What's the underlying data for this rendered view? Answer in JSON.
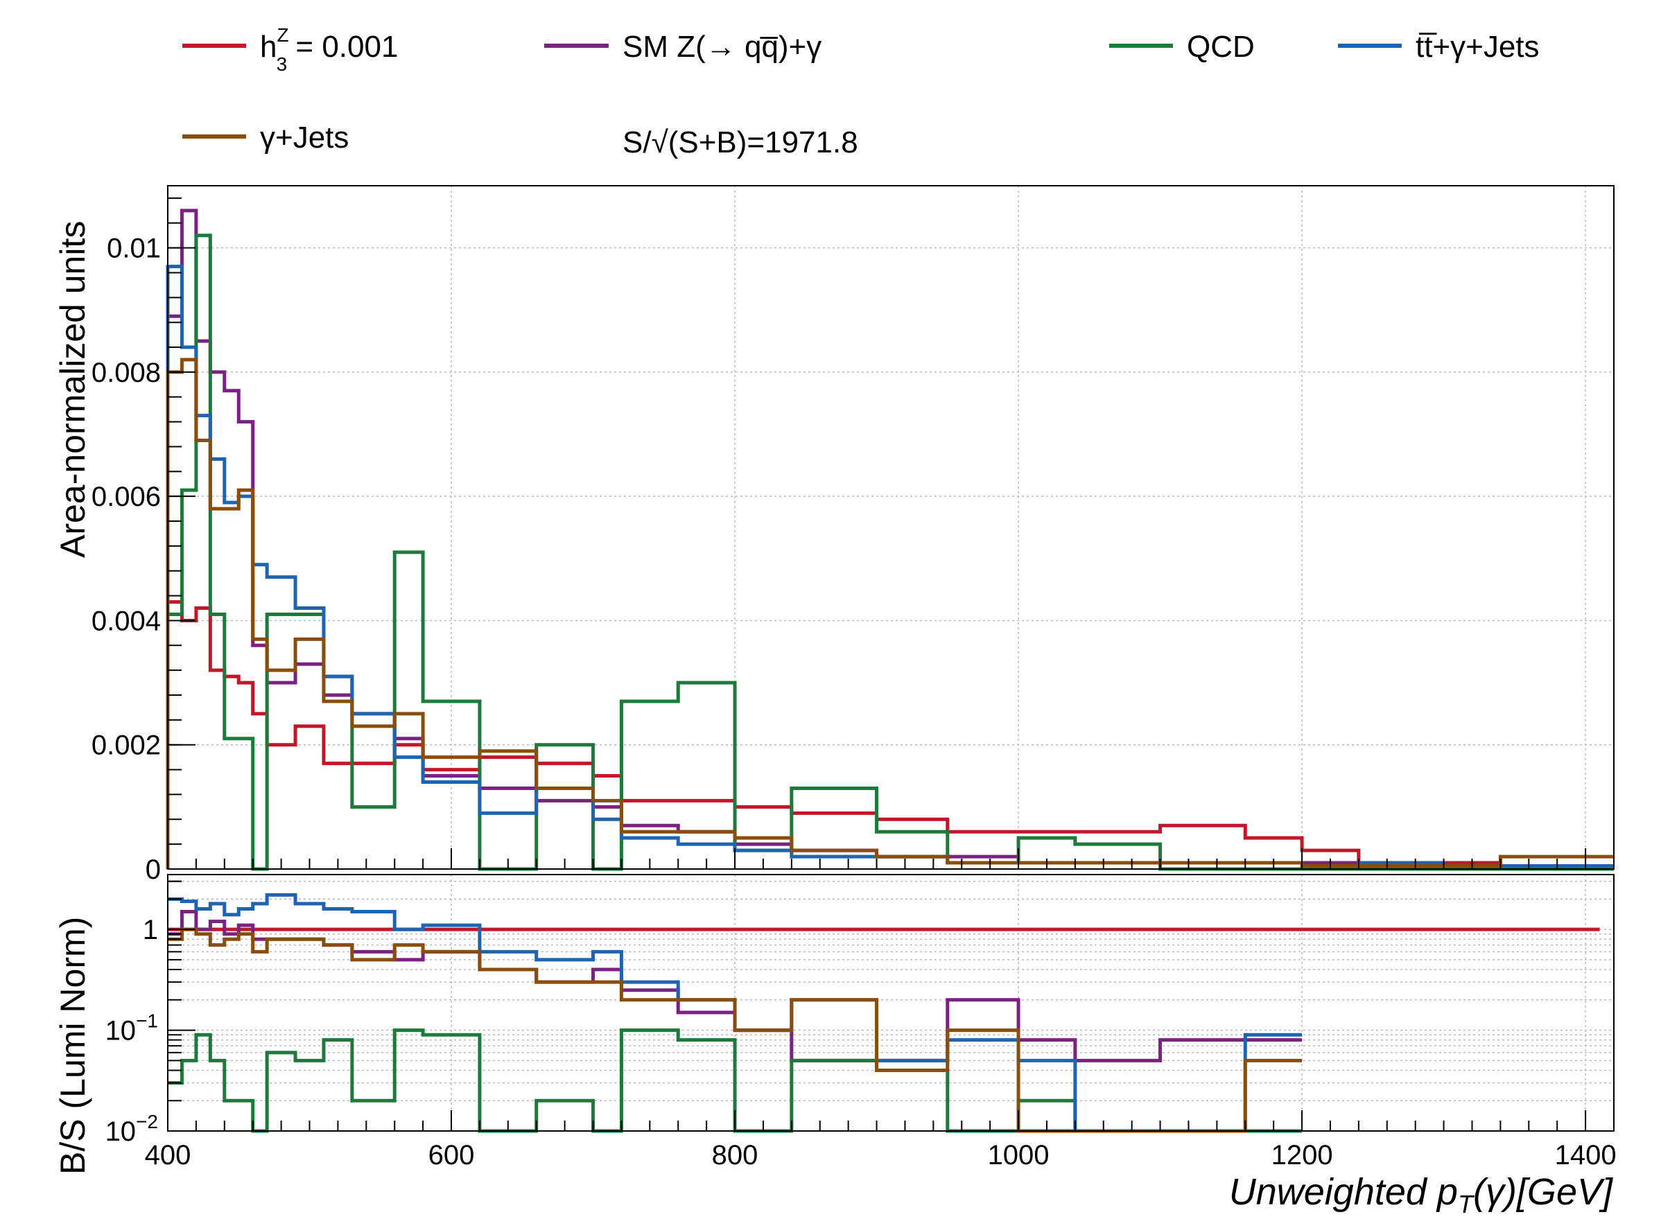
{
  "legend": {
    "entries": [
      {
        "label": "h",
        "sup": "Z",
        "sub": "3",
        "suffix": " = 0.001",
        "color": "#c0182a"
      },
      {
        "label": "SM Z(→ qq̅)+γ",
        "color": "#7a2182"
      },
      {
        "label": "QCD",
        "color": "#1d7a3a"
      },
      {
        "label": "tt̅+γ+Jets",
        "color": "#1f64b0"
      },
      {
        "label": "γ+Jets",
        "color": "#8a4e0c"
      }
    ],
    "significance": "S/√(S+B)=1971.8"
  },
  "chart_data": [
    {
      "type": "line",
      "step": true,
      "ylabel": "Area-normalized units",
      "xlim": [
        400,
        1420
      ],
      "ylim": [
        0,
        0.011
      ],
      "yticks": [
        {
          "value": 0,
          "label": "0"
        },
        {
          "value": 0.002,
          "label": "0.002"
        },
        {
          "value": 0.004,
          "label": "0.004"
        },
        {
          "value": 0.006,
          "label": "0.006"
        },
        {
          "value": 0.008,
          "label": "0.008"
        },
        {
          "value": 0.01,
          "label": "0.01"
        }
      ],
      "grid": true,
      "series": [
        {
          "name": "h3Z = 0.001",
          "color": "#c0182a",
          "edges": [
            400,
            410,
            420,
            430,
            440,
            450,
            460,
            470,
            490,
            510,
            530,
            560,
            580,
            620,
            660,
            700,
            720,
            760,
            800,
            840,
            900,
            950,
            1000,
            1040,
            1100,
            1160,
            1200,
            1220,
            1240,
            1280,
            1300,
            1320,
            1340,
            1360,
            1420
          ],
          "values": [
            0.0043,
            0.004,
            0.0042,
            0.0032,
            0.0031,
            0.003,
            0.0025,
            0.002,
            0.0023,
            0.0017,
            0.0017,
            0.002,
            0.0016,
            0.0018,
            0.0017,
            0.0015,
            0.0011,
            0.0011,
            0.001,
            0.0009,
            0.0008,
            0.0006,
            0.0006,
            0.0006,
            0.0007,
            0.0005,
            0.0003,
            0.0003,
            0.0001,
            0.0001,
            0.0001,
            0.0001,
            5e-05,
            5e-05
          ]
        },
        {
          "name": "SM Z(→ qq̅)+γ",
          "color": "#7a2182",
          "edges": [
            400,
            410,
            420,
            430,
            440,
            450,
            460,
            470,
            490,
            510,
            530,
            560,
            580,
            620,
            660,
            700,
            720,
            760,
            800,
            840,
            900,
            950,
            1000,
            1040,
            1100,
            1160,
            1200,
            1220,
            1240,
            1280,
            1300,
            1320,
            1340,
            1360,
            1420
          ],
          "values": [
            0.0089,
            0.0106,
            0.0085,
            0.008,
            0.0077,
            0.0072,
            0.0036,
            0.003,
            0.0033,
            0.0028,
            0.0025,
            0.0021,
            0.0015,
            0.0013,
            0.0011,
            0.001,
            0.0007,
            0.0006,
            0.0004,
            0.0003,
            0.0002,
            0.0002,
            0.0001,
            0.0001,
            0.0001,
            0.0001,
            0.0001,
            0.0001,
            5e-05,
            5e-05,
            5e-05,
            5e-05,
            5e-05,
            5e-05
          ]
        },
        {
          "name": "QCD",
          "color": "#1d7a3a",
          "edges": [
            400,
            410,
            420,
            430,
            440,
            450,
            460,
            470,
            490,
            510,
            530,
            560,
            580,
            620,
            660,
            700,
            720,
            760,
            800,
            840,
            900,
            950,
            1000,
            1040,
            1100,
            1160,
            1200,
            1220,
            1240,
            1280,
            1300,
            1320,
            1340,
            1360,
            1420
          ],
          "values": [
            0.0041,
            0.0061,
            0.0102,
            0.0041,
            0.0021,
            0.0021,
            0.0,
            0.0041,
            0.0041,
            0.0031,
            0.001,
            0.0051,
            0.0027,
            0.0,
            0.002,
            0.0,
            0.0027,
            0.003,
            0.0003,
            0.0013,
            0.0006,
            0.0001,
            0.0005,
            0.0004,
            0.0,
            0.0,
            0.0,
            0.0,
            0.0,
            0.0,
            0.0,
            0.0,
            0.0,
            0.0
          ]
        },
        {
          "name": "tt̅+γ+Jets",
          "color": "#1f64b0",
          "edges": [
            400,
            410,
            420,
            430,
            440,
            450,
            460,
            470,
            490,
            510,
            530,
            560,
            580,
            620,
            660,
            700,
            720,
            760,
            800,
            840,
            900,
            950,
            1000,
            1040,
            1100,
            1160,
            1200,
            1220,
            1240,
            1280,
            1300,
            1320,
            1340,
            1360,
            1420
          ],
          "values": [
            0.0097,
            0.0084,
            0.0073,
            0.0066,
            0.0059,
            0.006,
            0.0049,
            0.0047,
            0.0042,
            0.0031,
            0.0025,
            0.0018,
            0.0014,
            0.0009,
            0.0013,
            0.0008,
            0.0005,
            0.0004,
            0.0003,
            0.0002,
            0.0002,
            0.0001,
            0.0001,
            0.0001,
            0.0001,
            0.0001,
            5e-05,
            5e-05,
            0.0001,
            0.0001,
            5e-05,
            5e-05,
            5e-05,
            5e-05
          ]
        },
        {
          "name": "γ+Jets",
          "color": "#8a4e0c",
          "edges": [
            400,
            410,
            420,
            430,
            440,
            450,
            460,
            470,
            490,
            510,
            530,
            560,
            580,
            620,
            660,
            700,
            720,
            760,
            800,
            840,
            900,
            950,
            1000,
            1040,
            1100,
            1160,
            1200,
            1220,
            1240,
            1280,
            1300,
            1320,
            1340,
            1360,
            1420
          ],
          "values": [
            0.008,
            0.0082,
            0.0069,
            0.0058,
            0.0058,
            0.0061,
            0.0037,
            0.0032,
            0.0037,
            0.0027,
            0.0023,
            0.0025,
            0.0018,
            0.0019,
            0.0013,
            0.0011,
            0.0006,
            0.0006,
            0.0005,
            0.0003,
            0.0002,
            0.0001,
            0.0001,
            0.0001,
            0.0001,
            0.0001,
            5e-05,
            5e-05,
            5e-05,
            5e-05,
            5e-05,
            5e-05,
            0.0002,
            0.0002
          ]
        }
      ]
    },
    {
      "type": "line",
      "step": true,
      "log_scale_y": true,
      "ylabel": "B/S (Lumi Norm)",
      "xlabel": "Unweighted p_T(γ)[GeV]",
      "xlim": [
        400,
        1420
      ],
      "ylim": [
        0.01,
        3.5
      ],
      "xticks": [
        400,
        600,
        800,
        1000,
        1200,
        1400
      ],
      "yticks": [
        {
          "value": 1,
          "label": "1"
        },
        {
          "value": 0.1,
          "label": "10^-1"
        },
        {
          "value": 0.01,
          "label": "10^-2"
        }
      ],
      "grid": true,
      "series": [
        {
          "name": "h3Z = 0.001",
          "color": "#c0182a",
          "edges": [
            400,
            1410
          ],
          "values": [
            1.0
          ]
        },
        {
          "name": "SM Z(→ qq̅)+γ",
          "color": "#7a2182",
          "edges": [
            400,
            410,
            420,
            430,
            440,
            450,
            460,
            470,
            490,
            510,
            530,
            560,
            580,
            620,
            660,
            700,
            720,
            760,
            800,
            840,
            900,
            950,
            1000,
            1040,
            1100,
            1160,
            1200
          ],
          "values": [
            0.9,
            1.5,
            1.0,
            1.2,
            0.9,
            1.1,
            0.8,
            0.8,
            0.8,
            0.7,
            0.6,
            0.5,
            0.6,
            0.4,
            0.3,
            0.4,
            0.25,
            0.15,
            0.1,
            0.05,
            0.05,
            0.2,
            0.08,
            0.05,
            0.08,
            0.08
          ]
        },
        {
          "name": "QCD",
          "color": "#1d7a3a",
          "edges": [
            400,
            410,
            420,
            430,
            440,
            450,
            460,
            470,
            490,
            510,
            530,
            560,
            580,
            620,
            660,
            700,
            720,
            760,
            800,
            840,
            900,
            950,
            1000,
            1040,
            1100,
            1160,
            1200
          ],
          "values": [
            0.03,
            0.05,
            0.09,
            0.05,
            0.02,
            0.02,
            0.0,
            0.06,
            0.05,
            0.08,
            0.02,
            0.1,
            0.09,
            0.0,
            0.02,
            0.0,
            0.1,
            0.08,
            0.0,
            0.05,
            0.04,
            0.0,
            0.02,
            0.0,
            0.0,
            0.0
          ]
        },
        {
          "name": "tt̅+γ+Jets",
          "color": "#1f64b0",
          "edges": [
            400,
            410,
            420,
            430,
            440,
            450,
            460,
            470,
            490,
            510,
            530,
            560,
            580,
            620,
            660,
            700,
            720,
            760,
            800,
            840,
            900,
            950,
            1000,
            1040,
            1100,
            1160,
            1200
          ],
          "values": [
            2.0,
            1.9,
            1.6,
            1.8,
            1.4,
            1.6,
            1.8,
            2.2,
            1.8,
            1.6,
            1.5,
            1.0,
            1.1,
            0.6,
            0.5,
            0.6,
            0.3,
            0.2,
            0.1,
            0.2,
            0.05,
            0.08,
            0.05,
            0.0,
            0.01,
            0.09
          ]
        },
        {
          "name": "γ+Jets",
          "color": "#8a4e0c",
          "edges": [
            400,
            410,
            420,
            430,
            440,
            450,
            460,
            470,
            490,
            510,
            530,
            560,
            580,
            620,
            660,
            700,
            720,
            760,
            800,
            840,
            900,
            950,
            1000,
            1040,
            1100,
            1160,
            1200
          ],
          "values": [
            0.8,
            1.0,
            0.9,
            0.7,
            0.8,
            0.9,
            0.6,
            0.8,
            0.8,
            0.7,
            0.5,
            0.7,
            0.6,
            0.4,
            0.3,
            0.3,
            0.2,
            0.2,
            0.1,
            0.2,
            0.04,
            0.1,
            0.0,
            0.0,
            0.0,
            0.05
          ]
        }
      ]
    }
  ]
}
